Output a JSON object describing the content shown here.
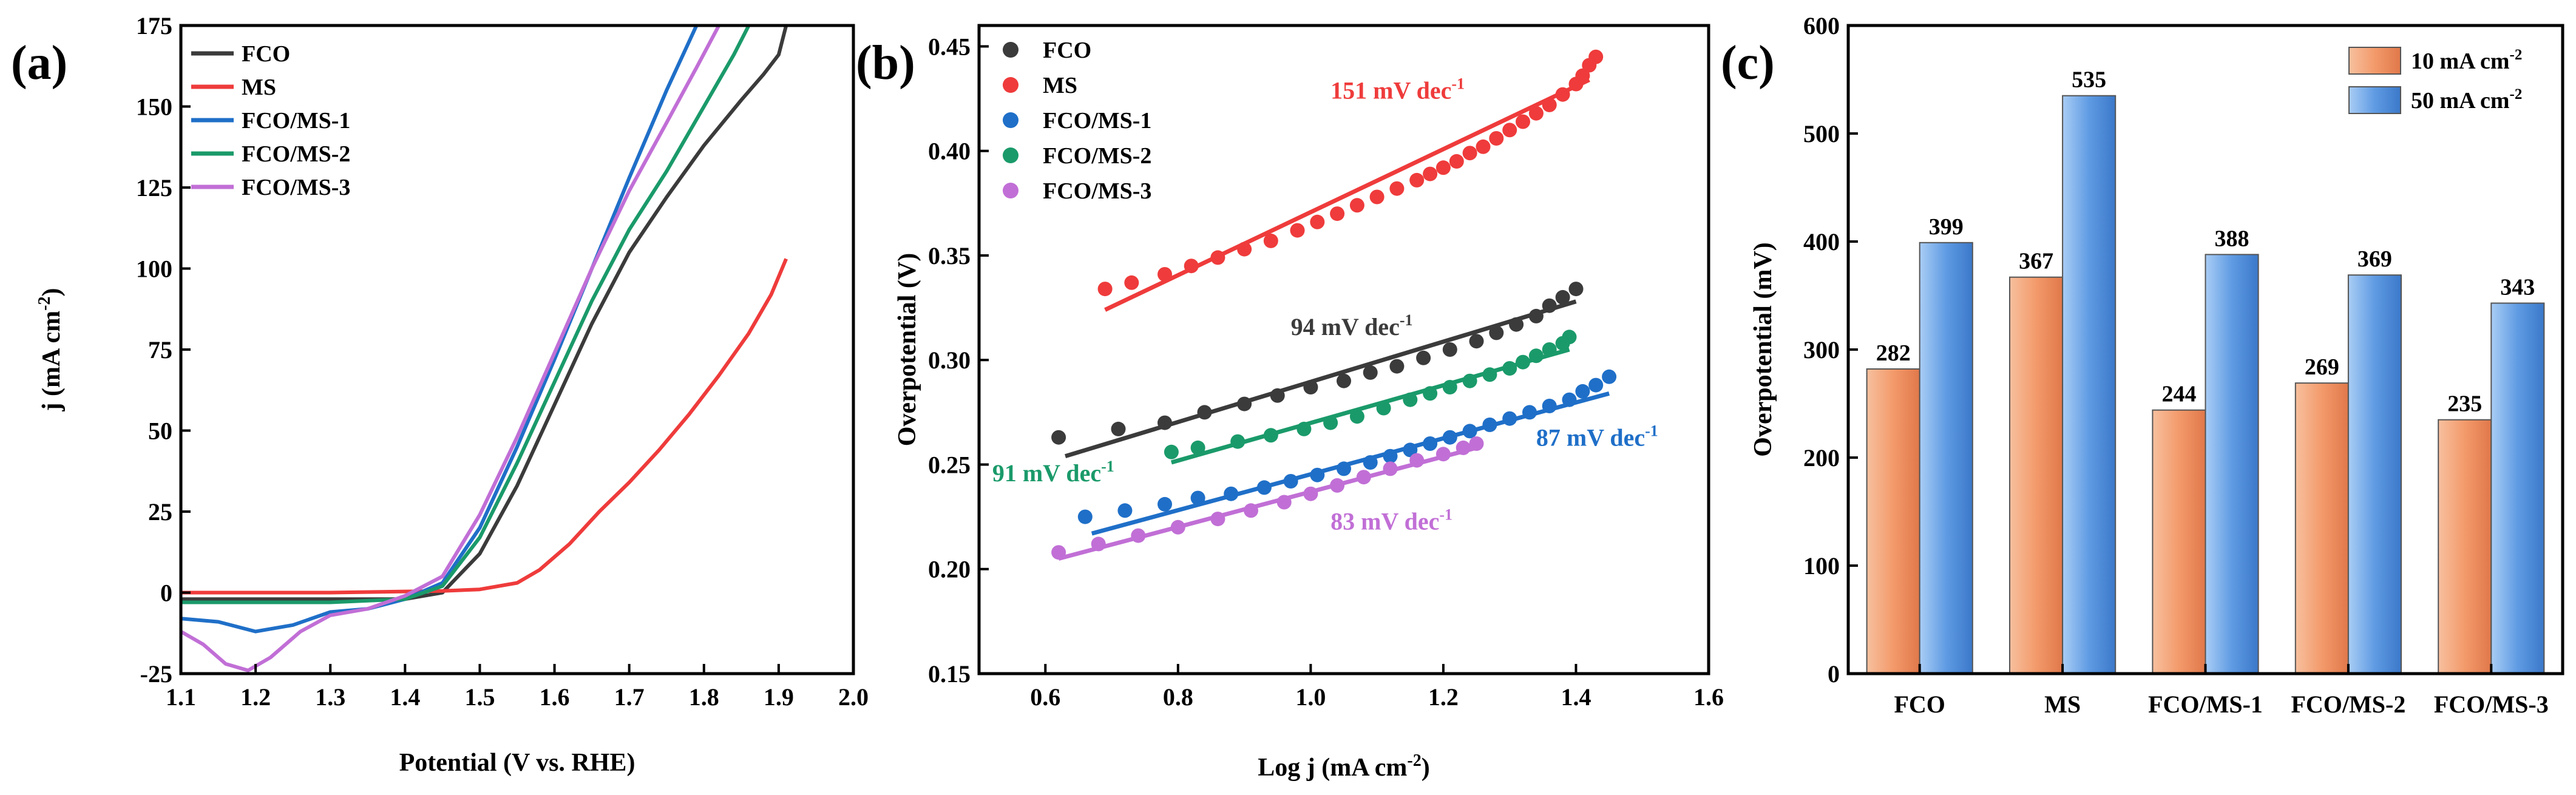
{
  "chart_data": [
    {
      "type": "line",
      "panel_label": "(a)",
      "xlabel": "Potential (V vs. RHE)",
      "ylabel": "j (mA cm-2)",
      "ylabel_base": "j (mA cm",
      "ylabel_sup": "-2",
      "ylabel_tail": ")",
      "xlim": [
        1.1,
        2.0
      ],
      "ylim": [
        -25,
        175
      ],
      "xticks": [
        1.1,
        1.2,
        1.3,
        1.4,
        1.5,
        1.6,
        1.7,
        1.8,
        1.9,
        2.0
      ],
      "xtick_labels": [
        "1.1",
        "1.2",
        "1.3",
        "1.4",
        "1.5",
        "1.6",
        "1.7",
        "1.8",
        "1.9",
        "2.0"
      ],
      "yticks": [
        -25,
        0,
        25,
        50,
        75,
        100,
        125,
        150,
        175
      ],
      "ytick_labels": [
        "-25",
        "0",
        "25",
        "50",
        "75",
        "100",
        "125",
        "150",
        "175"
      ],
      "legend_position": "top-left",
      "series": [
        {
          "name": "FCO",
          "color": "#3b3b3b",
          "x": [
            1.1,
            1.3,
            1.4,
            1.45,
            1.5,
            1.55,
            1.6,
            1.65,
            1.7,
            1.75,
            1.8,
            1.85,
            1.88,
            1.9,
            1.91
          ],
          "y": [
            -2,
            -2,
            -2,
            0,
            12,
            33,
            58,
            83,
            105,
            122,
            138,
            152,
            160,
            166,
            175
          ]
        },
        {
          "name": "MS",
          "color": "#ef3b3b",
          "x": [
            1.1,
            1.3,
            1.45,
            1.5,
            1.55,
            1.58,
            1.62,
            1.66,
            1.7,
            1.74,
            1.78,
            1.82,
            1.86,
            1.89,
            1.91
          ],
          "y": [
            0,
            0,
            0.5,
            1,
            3,
            7,
            15,
            25,
            34,
            44,
            55,
            67,
            80,
            92,
            103
          ]
        },
        {
          "name": "FCO/MS-1",
          "color": "#1f6fc8",
          "x": [
            1.1,
            1.15,
            1.2,
            1.25,
            1.3,
            1.35,
            1.4,
            1.45,
            1.5,
            1.55,
            1.6,
            1.65,
            1.7,
            1.75,
            1.78,
            1.79
          ],
          "y": [
            -8,
            -9,
            -12,
            -10,
            -6,
            -5,
            -2,
            3,
            20,
            45,
            72,
            100,
            128,
            155,
            170,
            175
          ]
        },
        {
          "name": "FCO/MS-2",
          "color": "#1a9a6a",
          "x": [
            1.1,
            1.3,
            1.4,
            1.45,
            1.5,
            1.55,
            1.6,
            1.65,
            1.7,
            1.75,
            1.8,
            1.84,
            1.86
          ],
          "y": [
            -3,
            -3,
            -2,
            2,
            17,
            40,
            65,
            90,
            112,
            130,
            150,
            166,
            175
          ]
        },
        {
          "name": "FCO/MS-3",
          "color": "#c16fd6",
          "x": [
            1.1,
            1.13,
            1.16,
            1.19,
            1.22,
            1.26,
            1.3,
            1.35,
            1.4,
            1.45,
            1.5,
            1.55,
            1.6,
            1.65,
            1.7,
            1.75,
            1.79,
            1.82
          ],
          "y": [
            -12,
            -16,
            -22,
            -24,
            -20,
            -12,
            -7,
            -5,
            -1,
            5,
            24,
            48,
            74,
            100,
            124,
            145,
            162,
            175
          ]
        }
      ]
    },
    {
      "type": "scatter",
      "panel_label": "(b)",
      "xlabel": "Log j (mA cm-2)",
      "xlabel_base": "Log j (mA cm",
      "xlabel_sup": "-2",
      "xlabel_tail": ")",
      "ylabel": "Overpotential (V)",
      "xlim": [
        0.5,
        1.6
      ],
      "ylim": [
        0.15,
        0.46
      ],
      "xticks": [
        0.6,
        0.8,
        1.0,
        1.2,
        1.4,
        1.6
      ],
      "xtick_labels": [
        "0.6",
        "0.8",
        "1.0",
        "1.2",
        "1.4",
        "1.6"
      ],
      "yticks": [
        0.15,
        0.2,
        0.25,
        0.3,
        0.35,
        0.4,
        0.45
      ],
      "ytick_labels": [
        "0.15",
        "0.20",
        "0.25",
        "0.30",
        "0.35",
        "0.40",
        "0.45"
      ],
      "legend_position": "top-left",
      "series": [
        {
          "name": "FCO",
          "color": "#3b3b3b",
          "x": [
            0.62,
            0.71,
            0.78,
            0.84,
            0.9,
            0.95,
            1.0,
            1.05,
            1.09,
            1.13,
            1.17,
            1.21,
            1.25,
            1.28,
            1.31,
            1.34,
            1.36,
            1.38,
            1.4
          ],
          "y": [
            0.263,
            0.267,
            0.27,
            0.275,
            0.279,
            0.283,
            0.287,
            0.29,
            0.294,
            0.297,
            0.301,
            0.305,
            0.309,
            0.313,
            0.317,
            0.321,
            0.326,
            0.33,
            0.334
          ],
          "fit": {
            "x": [
              0.63,
              1.4
            ],
            "y": [
              0.254,
              0.328
            ],
            "label": "94 mV dec-1",
            "label_base": "94 mV dec",
            "label_sup": "-1",
            "label_at": [
              0.97,
              0.312
            ]
          }
        },
        {
          "name": "MS",
          "color": "#ef3b3b",
          "x": [
            0.69,
            0.73,
            0.78,
            0.82,
            0.86,
            0.9,
            0.94,
            0.98,
            1.01,
            1.04,
            1.07,
            1.1,
            1.13,
            1.16,
            1.18,
            1.2,
            1.22,
            1.24,
            1.26,
            1.28,
            1.3,
            1.32,
            1.34,
            1.36,
            1.38,
            1.4,
            1.41,
            1.42,
            1.43
          ],
          "y": [
            0.334,
            0.337,
            0.341,
            0.345,
            0.349,
            0.353,
            0.357,
            0.362,
            0.366,
            0.37,
            0.374,
            0.378,
            0.382,
            0.386,
            0.389,
            0.392,
            0.395,
            0.399,
            0.402,
            0.406,
            0.41,
            0.414,
            0.418,
            0.422,
            0.427,
            0.432,
            0.436,
            0.441,
            0.445
          ],
          "fit": {
            "x": [
              0.69,
              1.42
            ],
            "y": [
              0.324,
              0.434
            ],
            "label": "151 mV dec-1",
            "label_base": "151 mV dec",
            "label_sup": "-1",
            "label_at": [
              1.03,
              0.425
            ]
          }
        },
        {
          "name": "FCO/MS-1",
          "color": "#1f6fc8",
          "x": [
            0.66,
            0.72,
            0.78,
            0.83,
            0.88,
            0.93,
            0.97,
            1.01,
            1.05,
            1.09,
            1.12,
            1.15,
            1.18,
            1.21,
            1.24,
            1.27,
            1.3,
            1.33,
            1.36,
            1.39,
            1.41,
            1.43,
            1.45
          ],
          "y": [
            0.225,
            0.228,
            0.231,
            0.234,
            0.236,
            0.239,
            0.242,
            0.245,
            0.248,
            0.251,
            0.254,
            0.257,
            0.26,
            0.263,
            0.266,
            0.269,
            0.272,
            0.275,
            0.278,
            0.281,
            0.285,
            0.288,
            0.292
          ],
          "fit": {
            "x": [
              0.67,
              1.45
            ],
            "y": [
              0.217,
              0.284
            ],
            "label": "87 mV dec-1",
            "label_base": "87 mV dec",
            "label_sup": "-1",
            "label_at": [
              1.34,
              0.259
            ]
          }
        },
        {
          "name": "FCO/MS-2",
          "color": "#1a9a6a",
          "x": [
            0.79,
            0.83,
            0.89,
            0.94,
            0.99,
            1.03,
            1.07,
            1.11,
            1.15,
            1.18,
            1.21,
            1.24,
            1.27,
            1.3,
            1.32,
            1.34,
            1.36,
            1.38,
            1.39
          ],
          "y": [
            0.256,
            0.258,
            0.261,
            0.264,
            0.267,
            0.27,
            0.273,
            0.277,
            0.281,
            0.284,
            0.287,
            0.29,
            0.293,
            0.296,
            0.299,
            0.302,
            0.305,
            0.308,
            0.311
          ],
          "fit": {
            "x": [
              0.79,
              1.39
            ],
            "y": [
              0.251,
              0.305
            ],
            "label": "91 mV dec-1",
            "label_base": "91 mV dec",
            "label_sup": "-1",
            "label_at": [
              0.52,
              0.242
            ]
          }
        },
        {
          "name": "FCO/MS-3",
          "color": "#c16fd6",
          "x": [
            0.62,
            0.68,
            0.74,
            0.8,
            0.86,
            0.91,
            0.96,
            1.0,
            1.04,
            1.08,
            1.12,
            1.16,
            1.2,
            1.23,
            1.25
          ],
          "y": [
            0.208,
            0.212,
            0.216,
            0.22,
            0.224,
            0.228,
            0.232,
            0.236,
            0.24,
            0.244,
            0.248,
            0.252,
            0.255,
            0.258,
            0.26
          ],
          "fit": {
            "x": [
              0.62,
              1.25
            ],
            "y": [
              0.205,
              0.258
            ],
            "label": "83 mV dec-1",
            "label_base": "83 mV dec",
            "label_sup": "-1",
            "label_at": [
              1.03,
              0.219
            ]
          }
        }
      ]
    },
    {
      "type": "bar",
      "panel_label": "(c)",
      "xlabel": "",
      "ylabel": "Overpotential (mV)",
      "categories": [
        "FCO",
        "MS",
        "FCO/MS-1",
        "FCO/MS-2",
        "FCO/MS-3"
      ],
      "ylim": [
        0,
        600
      ],
      "yticks": [
        0,
        100,
        200,
        300,
        400,
        500,
        600
      ],
      "ytick_labels": [
        "0",
        "100",
        "200",
        "300",
        "400",
        "500",
        "600"
      ],
      "legend_position": "top-right",
      "series": [
        {
          "name": "10 mA cm-2",
          "name_base": "10 mA cm",
          "name_sup": "-2",
          "color": "#f39a6b",
          "values": [
            282,
            367,
            244,
            269,
            235
          ]
        },
        {
          "name": "50 mA cm-2",
          "name_base": "50 mA cm",
          "name_sup": "-2",
          "color": "#5f9be3",
          "values": [
            399,
            535,
            388,
            369,
            343
          ]
        }
      ]
    }
  ]
}
